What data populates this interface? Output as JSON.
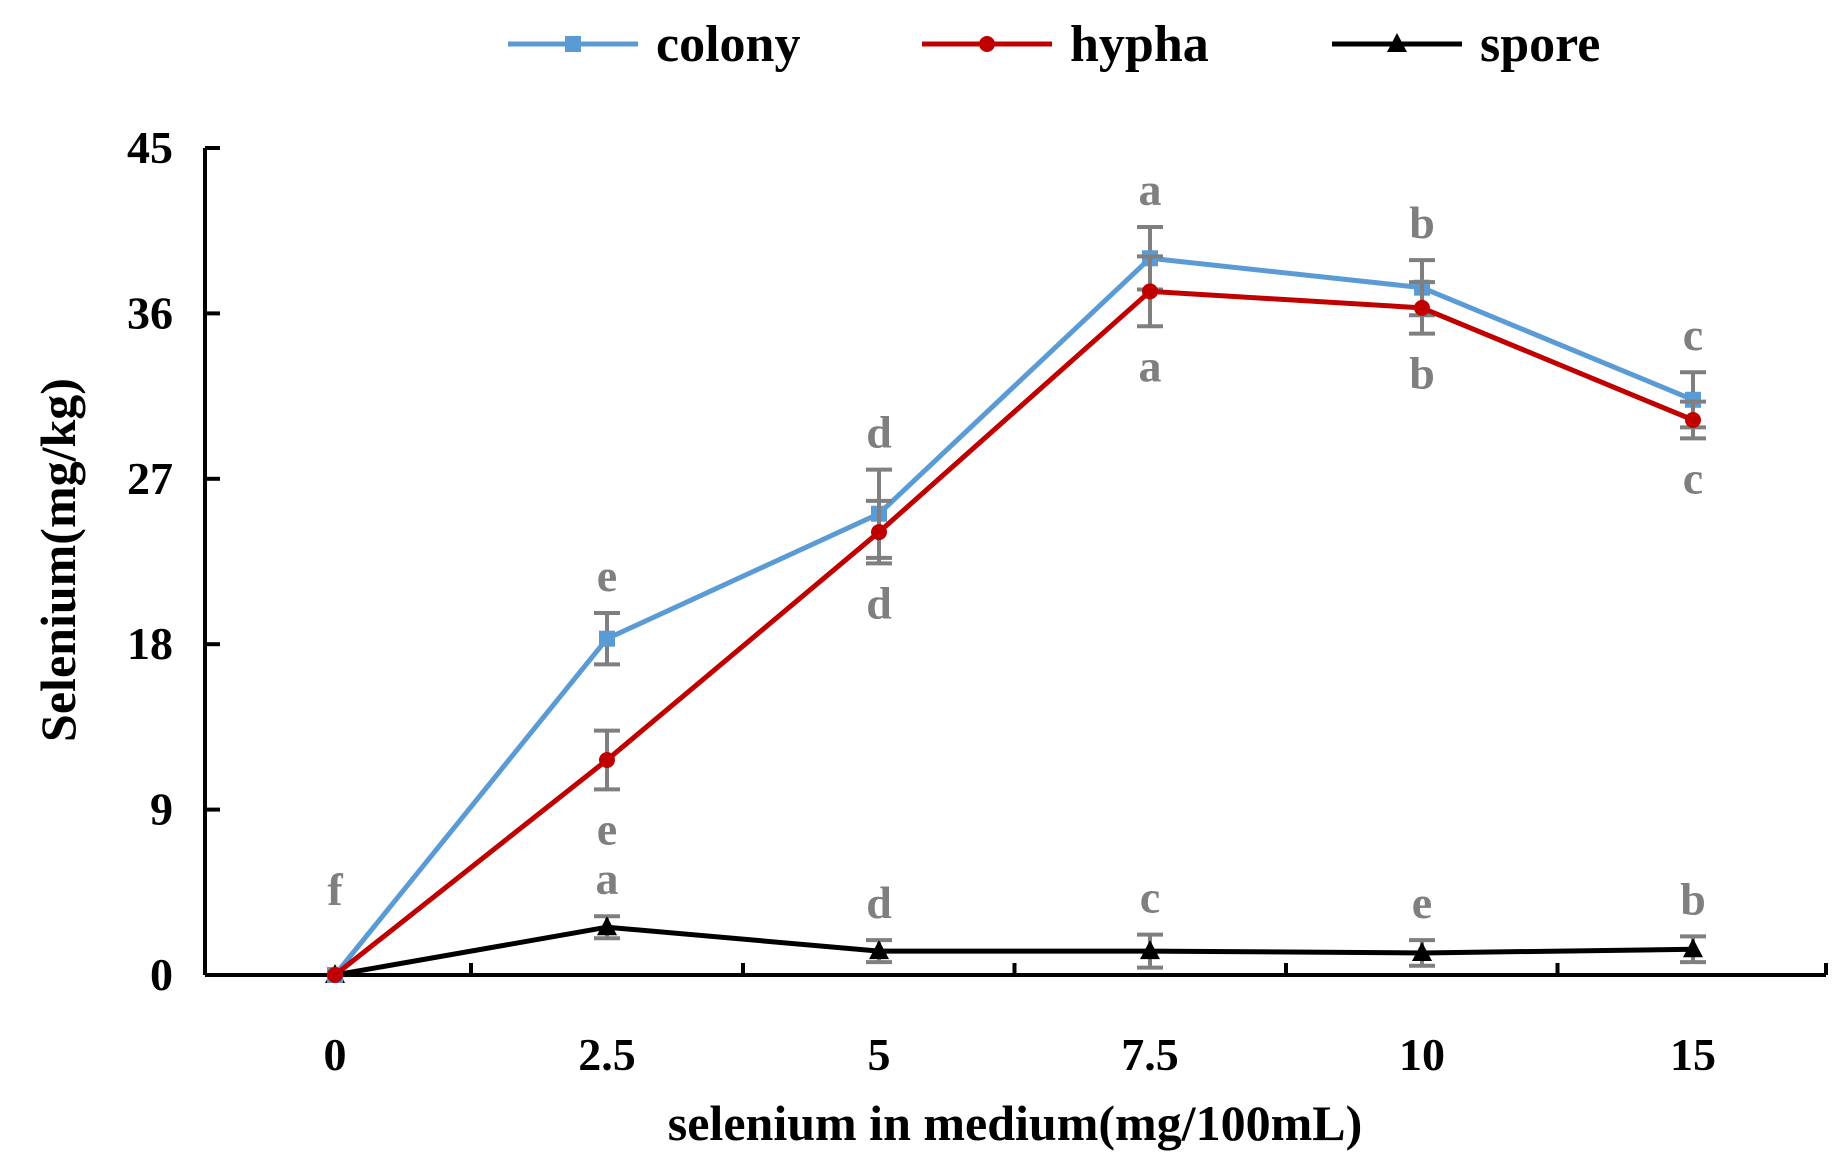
{
  "chart_data": {
    "type": "line",
    "title": "",
    "xlabel": "selenium in medium(mg/100mL)",
    "ylabel": "Selenium(mg/kg)",
    "x": [
      "0",
      "2.5",
      "5",
      "7.5",
      "10",
      "15"
    ],
    "yticks": [
      "0",
      "9",
      "18",
      "27",
      "36",
      "45"
    ],
    "ylim": [
      0,
      45
    ],
    "grid": false,
    "legend_position": "top",
    "series": [
      {
        "name": "colony",
        "color": "#5b9bd5",
        "marker": "square",
        "values": [
          0,
          18.3,
          25.1,
          39.0,
          37.4,
          31.3
        ],
        "errors": [
          0,
          1.4,
          2.4,
          1.7,
          1.5,
          1.5
        ],
        "labels": [
          "f",
          "e",
          "d",
          "a",
          "b",
          "c"
        ],
        "label_position": "above"
      },
      {
        "name": "hypha",
        "color": "#c00000",
        "marker": "circle",
        "values": [
          0,
          11.7,
          24.1,
          37.2,
          36.3,
          30.2
        ],
        "errors": [
          0,
          1.6,
          1.7,
          1.9,
          1.4,
          1.0
        ],
        "labels": [
          "",
          "e",
          "d",
          "a",
          "b",
          "c"
        ],
        "label_position": "below"
      },
      {
        "name": "spore",
        "color": "#000000",
        "marker": "triangle",
        "values": [
          0,
          2.6,
          1.3,
          1.3,
          1.2,
          1.4
        ],
        "errors": [
          0,
          0.6,
          0.6,
          0.9,
          0.7,
          0.7
        ],
        "labels": [
          "",
          "a",
          "d",
          "c",
          "e",
          "b"
        ],
        "label_position": "above"
      }
    ]
  }
}
